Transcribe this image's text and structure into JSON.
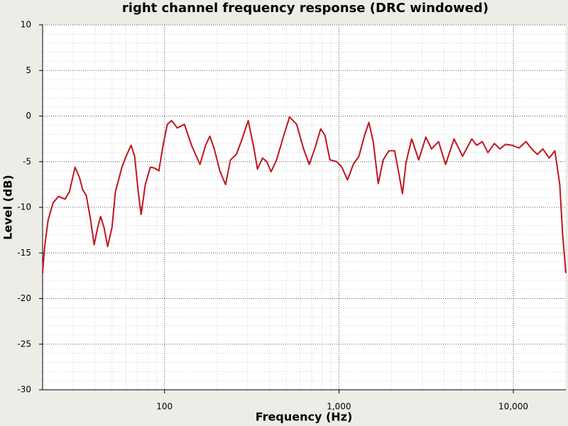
{
  "chart_data": {
    "type": "line",
    "title": "right channel frequency response (DRC windowed)",
    "xlabel": "Frequency (Hz)",
    "ylabel": "Level (dB)",
    "xscale": "log",
    "grid": true,
    "color": "#c0161e",
    "xlim": [
      20,
      20000
    ],
    "ylim": [
      -30,
      10
    ],
    "xticks": [
      100,
      {
        "value": 1000,
        "label": "1,000"
      },
      {
        "value": 10000,
        "label": "10,000"
      }
    ],
    "xminorticks": [
      20,
      30,
      40,
      50,
      60,
      70,
      80,
      90,
      200,
      300,
      400,
      500,
      600,
      700,
      800,
      900,
      2000,
      3000,
      4000,
      5000,
      6000,
      7000,
      8000,
      9000,
      20000
    ],
    "yticks": [
      10,
      5,
      0,
      -5,
      -10,
      -15,
      -20,
      -25,
      -30
    ],
    "yminorticks": [
      9,
      8,
      7,
      6,
      4,
      3,
      2,
      1,
      -1,
      -2,
      -3,
      -4,
      -6,
      -7,
      -8,
      -9,
      -11,
      -12,
      -13,
      -14,
      -16,
      -17,
      -18,
      -19,
      -21,
      -22,
      -23,
      -24,
      -26,
      -27,
      -28,
      -29
    ],
    "x": [
      20,
      20.5,
      21.5,
      23,
      24.7,
      26.9,
      28.5,
      30.7,
      32.5,
      34,
      35.6,
      37.7,
      39.5,
      41.4,
      43,
      45,
      47.2,
      50,
      52.3,
      57,
      60.2,
      64.3,
      67.4,
      70.7,
      73.4,
      77.6,
      82.9,
      87.7,
      92.8,
      98.1,
      103.8,
      109.8,
      118.4,
      130,
      142.8,
      159.7,
      172,
      182,
      192.8,
      207.6,
      223.8,
      239,
      258,
      275,
      302,
      326,
      341,
      365,
      386,
      408,
      439,
      483,
      521,
      572,
      627,
      676,
      729,
      786,
      831,
      888,
      973,
      1039,
      1120,
      1208,
      1302,
      1403,
      1485,
      1573,
      1680,
      1794,
      1935,
      2085,
      2206,
      2313,
      2424,
      2612,
      2867,
      3150,
      3395,
      3725,
      4087,
      4572,
      5114,
      5776,
      6165,
      6635,
      7145,
      7786,
      8380,
      9020,
      9815,
      10770,
      11818,
      12730,
      13710,
      14760,
      16050,
      17290,
      18450,
      19150,
      20000
    ],
    "values": [
      -17.2,
      -14.5,
      -11.4,
      -9.5,
      -8.8,
      -9.1,
      -8.3,
      -5.6,
      -6.7,
      -8.1,
      -8.7,
      -11.4,
      -14.1,
      -12.2,
      -11.0,
      -12.2,
      -14.3,
      -12.2,
      -8.3,
      -5.6,
      -4.4,
      -3.2,
      -4.4,
      -8.3,
      -10.8,
      -7.5,
      -5.6,
      -5.7,
      -6.0,
      -3.2,
      -0.9,
      -0.5,
      -1.3,
      -0.9,
      -3.2,
      -5.3,
      -3.2,
      -2.2,
      -3.6,
      -6.0,
      -7.5,
      -4.8,
      -4.2,
      -2.8,
      -0.5,
      -3.6,
      -5.8,
      -4.6,
      -5.0,
      -6.1,
      -4.8,
      -2.1,
      -0.1,
      -0.9,
      -3.6,
      -5.3,
      -3.5,
      -1.4,
      -2.1,
      -4.8,
      -5.0,
      -5.6,
      -7.0,
      -5.3,
      -4.4,
      -2.1,
      -0.7,
      -2.8,
      -7.4,
      -4.8,
      -3.8,
      -3.8,
      -6.3,
      -8.5,
      -5.1,
      -2.5,
      -4.8,
      -2.3,
      -3.6,
      -2.8,
      -5.3,
      -2.5,
      -4.4,
      -2.5,
      -3.2,
      -2.8,
      -4.0,
      -3.0,
      -3.6,
      -3.1,
      -3.2,
      -3.5,
      -2.8,
      -3.6,
      -4.2,
      -3.6,
      -4.6,
      -3.8,
      -7.5,
      -12.9,
      -17.2
    ]
  }
}
